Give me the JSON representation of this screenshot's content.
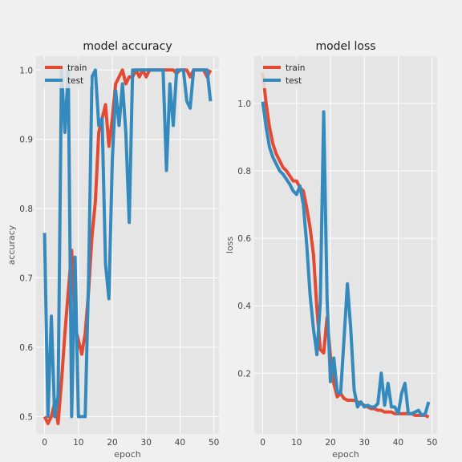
{
  "chart_data": [
    {
      "type": "line",
      "title": "model accuracy",
      "xlabel": "epoch",
      "ylabel": "accuracy",
      "xlim": [
        -2.5,
        51.5
      ],
      "ylim": [
        0.475,
        1.02
      ],
      "xticks": [
        0,
        10,
        20,
        30,
        40,
        50
      ],
      "yticks": [
        0.5,
        0.6,
        0.7,
        0.8,
        0.9,
        1.0
      ],
      "xtick_labels": [
        "0",
        "10",
        "20",
        "30",
        "40",
        "50"
      ],
      "ytick_labels": [
        "0.5",
        "0.6",
        "0.7",
        "0.8",
        "0.9",
        "1.0"
      ],
      "grid": true,
      "legend_position": "upper-left",
      "x": [
        0,
        1,
        2,
        3,
        4,
        5,
        6,
        7,
        8,
        9,
        10,
        11,
        12,
        13,
        14,
        15,
        16,
        17,
        18,
        19,
        20,
        21,
        22,
        23,
        24,
        25,
        26,
        27,
        28,
        29,
        30,
        31,
        32,
        33,
        34,
        35,
        36,
        37,
        38,
        39,
        40,
        41,
        42,
        43,
        44,
        45,
        46,
        47,
        48,
        49
      ],
      "series": [
        {
          "name": "train",
          "color": "#e24a33",
          "values": [
            0.5,
            0.49,
            0.5,
            0.52,
            0.49,
            0.55,
            0.62,
            0.68,
            0.74,
            0.63,
            0.61,
            0.59,
            0.62,
            0.68,
            0.76,
            0.81,
            0.91,
            0.93,
            0.95,
            0.89,
            0.93,
            0.98,
            0.99,
            1.0,
            0.98,
            0.99,
            0.99,
            1.0,
            0.99,
            1.0,
            0.99,
            1.0,
            1.0,
            1.0,
            1.0,
            1.0,
            1.0,
            1.0,
            1.0,
            0.995,
            1.0,
            1.0,
            1.0,
            0.99,
            1.0,
            1.0,
            1.0,
            1.0,
            0.99,
            1.0
          ]
        },
        {
          "name": "test",
          "color": "#348abd",
          "values": [
            0.765,
            0.5,
            0.645,
            0.5,
            0.53,
            1.0,
            0.91,
            1.0,
            0.5,
            0.73,
            0.5,
            0.5,
            0.5,
            0.7,
            0.99,
            1.0,
            0.92,
            0.93,
            0.72,
            0.67,
            0.87,
            0.97,
            0.92,
            0.98,
            0.91,
            0.78,
            1.0,
            1.0,
            1.0,
            1.0,
            1.0,
            1.0,
            1.0,
            1.0,
            1.0,
            1.0,
            0.855,
            0.98,
            0.92,
            1.0,
            1.0,
            1.0,
            0.955,
            0.945,
            1.0,
            1.0,
            1.0,
            1.0,
            1.0,
            0.955
          ]
        }
      ]
    },
    {
      "type": "line",
      "title": "model loss",
      "xlabel": "epoch",
      "ylabel": "loss",
      "xlim": [
        -2.5,
        51.5
      ],
      "ylim": [
        0.02,
        1.14
      ],
      "xticks": [
        0,
        10,
        20,
        30,
        40,
        50
      ],
      "yticks": [
        0.2,
        0.4,
        0.6,
        0.8,
        1.0
      ],
      "xtick_labels": [
        "0",
        "10",
        "20",
        "30",
        "40",
        "50"
      ],
      "ytick_labels": [
        "0.2",
        "0.4",
        "0.6",
        "0.8",
        "1.0"
      ],
      "grid": true,
      "legend_position": "upper-left",
      "x": [
        0,
        1,
        2,
        3,
        4,
        5,
        6,
        7,
        8,
        9,
        10,
        11,
        12,
        13,
        14,
        15,
        16,
        17,
        18,
        19,
        20,
        21,
        22,
        23,
        24,
        25,
        26,
        27,
        28,
        29,
        30,
        31,
        32,
        33,
        34,
        35,
        36,
        37,
        38,
        39,
        40,
        41,
        42,
        43,
        44,
        45,
        46,
        47,
        48,
        49
      ],
      "series": [
        {
          "name": "train",
          "color": "#e24a33",
          "values": [
            1.09,
            1.0,
            0.93,
            0.88,
            0.85,
            0.83,
            0.81,
            0.8,
            0.785,
            0.77,
            0.77,
            0.75,
            0.74,
            0.69,
            0.63,
            0.55,
            0.39,
            0.27,
            0.26,
            0.365,
            0.25,
            0.17,
            0.13,
            0.14,
            0.125,
            0.12,
            0.12,
            0.12,
            0.115,
            0.11,
            0.105,
            0.1,
            0.095,
            0.095,
            0.09,
            0.09,
            0.085,
            0.085,
            0.085,
            0.08,
            0.08,
            0.08,
            0.08,
            0.08,
            0.08,
            0.075,
            0.075,
            0.075,
            0.075,
            0.07
          ]
        },
        {
          "name": "test",
          "color": "#348abd",
          "values": [
            1.005,
            0.93,
            0.87,
            0.84,
            0.82,
            0.8,
            0.79,
            0.775,
            0.76,
            0.74,
            0.73,
            0.755,
            0.7,
            0.58,
            0.43,
            0.33,
            0.255,
            0.41,
            0.975,
            0.42,
            0.175,
            0.245,
            0.145,
            0.14,
            0.3,
            0.465,
            0.33,
            0.15,
            0.1,
            0.115,
            0.1,
            0.105,
            0.1,
            0.1,
            0.11,
            0.2,
            0.105,
            0.17,
            0.1,
            0.1,
            0.08,
            0.14,
            0.17,
            0.08,
            0.08,
            0.085,
            0.09,
            0.075,
            0.08,
            0.115
          ]
        }
      ]
    }
  ]
}
